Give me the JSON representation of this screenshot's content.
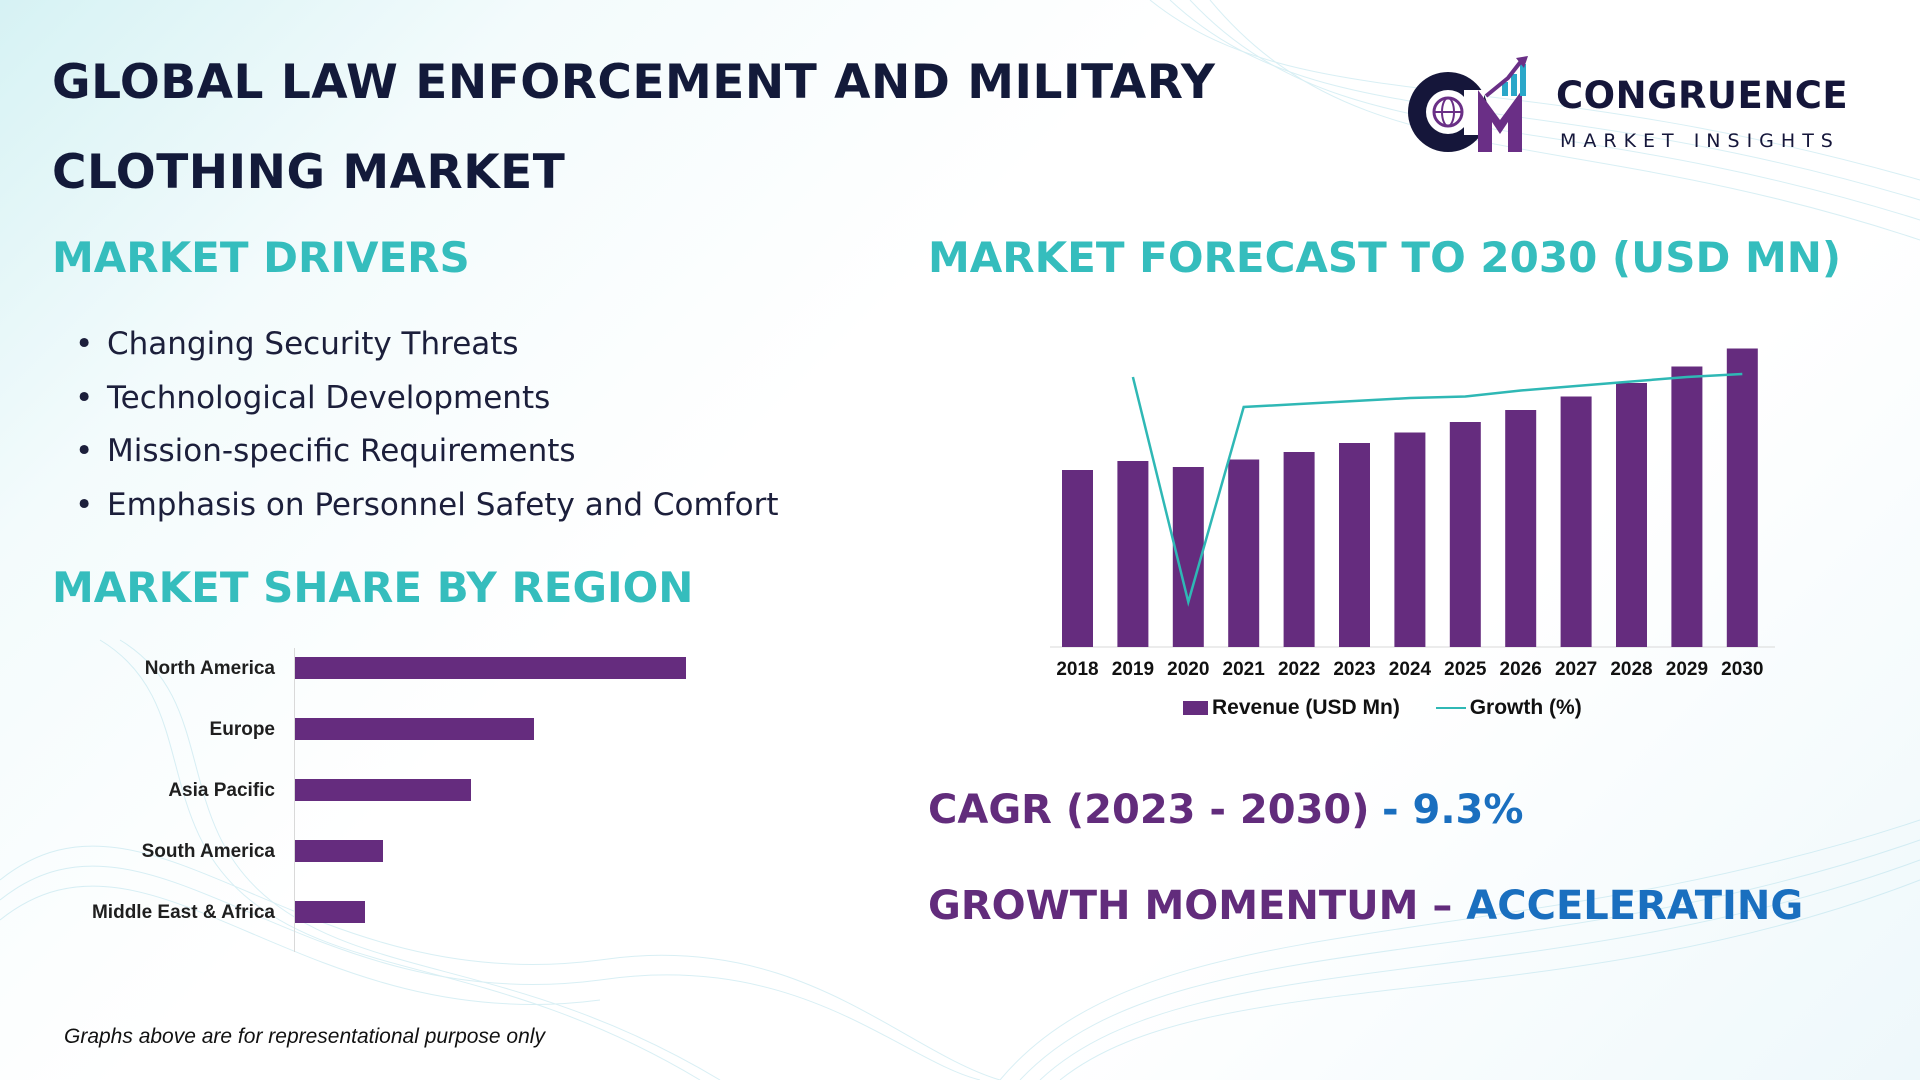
{
  "header": {
    "title_line1": "GLOBAL LAW ENFORCEMENT AND MILITARY",
    "title_line2": "CLOTHING MARKET"
  },
  "logo": {
    "name": "CONGRUENCE",
    "subtitle": "MARKET INSIGHTS",
    "icon": "cm-globe-chart-icon"
  },
  "drivers": {
    "heading": "MARKET DRIVERS",
    "items": [
      "Changing Security Threats",
      "Technological Developments",
      "Mission-specific Requirements",
      "Emphasis on Personnel Safety and Comfort"
    ]
  },
  "region": {
    "heading": "MARKET SHARE BY REGION"
  },
  "forecast": {
    "heading": "MARKET FORECAST TO 2030 (USD MN)"
  },
  "kpis": {
    "cagr_label": "CAGR (2023 - 2030)",
    "cagr_value": "- 9.3%",
    "momentum_label": "GROWTH MOMENTUM – ",
    "momentum_value": "ACCELERATING"
  },
  "footnote": "Graphs above are for representational purpose only",
  "colors": {
    "bar": "#652c7e",
    "growth_line": "#2fb8b5",
    "heading_teal": "#35bdbd",
    "title_navy": "#131a3a",
    "kpi_purple": "#622c7c",
    "kpi_blue": "#1a6fbf"
  },
  "chart_data": [
    {
      "type": "bar",
      "orientation": "horizontal",
      "categories": [
        "North America",
        "Europe",
        "Asia Pacific",
        "South America",
        "Middle East & Africa"
      ],
      "values": [
        100,
        61,
        45,
        22.5,
        18
      ],
      "value_units": "relative share (no axis shown)"
    },
    {
      "type": "bar+line",
      "categories": [
        "2018",
        "2019",
        "2020",
        "2021",
        "2022",
        "2023",
        "2024",
        "2025",
        "2026",
        "2027",
        "2028",
        "2029",
        "2030"
      ],
      "series": [
        {
          "name": "Revenue (USD Mn)",
          "type": "bar",
          "values": [
            59,
            62,
            60,
            62.5,
            65,
            68,
            71.5,
            75,
            79,
            83.5,
            88,
            93.5,
            99.5
          ]
        },
        {
          "name": "Growth (%)",
          "type": "line",
          "values": [
            null,
            90,
            15,
            80,
            81,
            82,
            83,
            83.5,
            85.5,
            87,
            88.5,
            90,
            91
          ]
        }
      ],
      "legend": "bottom"
    }
  ]
}
